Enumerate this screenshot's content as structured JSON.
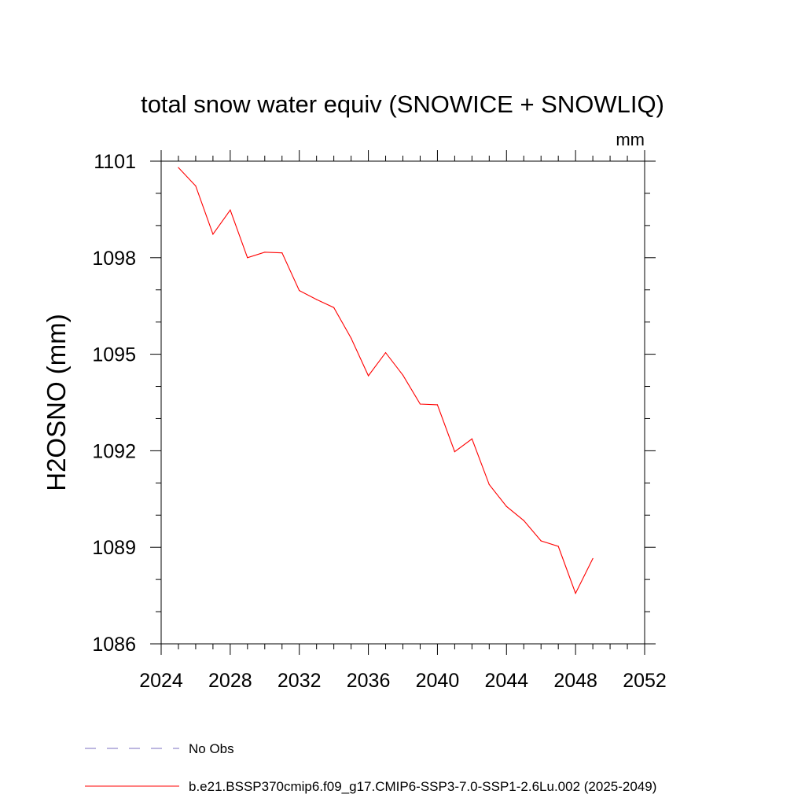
{
  "chart_data": {
    "type": "line",
    "title": "total snow water equiv (SNOWICE + SNOWLIQ)",
    "units_label": "mm",
    "ylabel": "H2OSNO  (mm)",
    "xlabel": "",
    "xlim": [
      2024,
      2052
    ],
    "ylim": [
      1086,
      1101
    ],
    "x_ticks": [
      "2024",
      "2028",
      "2032",
      "2036",
      "2040",
      "2044",
      "2048",
      "2052"
    ],
    "y_ticks": [
      "1101",
      "1098",
      "1095",
      "1092",
      "1089",
      "1086"
    ],
    "x_minor_step": 1,
    "y_minor_step": 1,
    "grid": false,
    "series": [
      {
        "name": "b.e21.BSSP370cmip6.f09_g17.CMIP6-SSP3-7.0-SSP1-2.6Lu.002 (2025-2049)",
        "color": "#ff0000",
        "style": "solid",
        "x": [
          2025,
          2026,
          2027,
          2028,
          2029,
          2030,
          2031,
          2032,
          2033,
          2034,
          2035,
          2036,
          2037,
          2038,
          2039,
          2040,
          2041,
          2042,
          2043,
          2044,
          2045,
          2046,
          2047,
          2048,
          2049
        ],
        "y": [
          1100.8,
          1100.23,
          1098.73,
          1099.48,
          1098.0,
          1098.17,
          1098.15,
          1096.98,
          1096.7,
          1096.45,
          1095.5,
          1094.33,
          1095.05,
          1094.35,
          1093.45,
          1093.43,
          1091.97,
          1092.37,
          1090.95,
          1090.27,
          1089.83,
          1089.2,
          1089.03,
          1087.57,
          1088.65
        ]
      }
    ],
    "legend": [
      {
        "label": "No Obs",
        "color": "#7b6fc0",
        "style": "dashed"
      },
      {
        "label": "b.e21.BSSP370cmip6.f09_g17.CMIP6-SSP3-7.0-SSP1-2.6Lu.002 (2025-2049)",
        "color": "#ff0000",
        "style": "solid"
      }
    ],
    "legend_position": "bottom-left"
  }
}
